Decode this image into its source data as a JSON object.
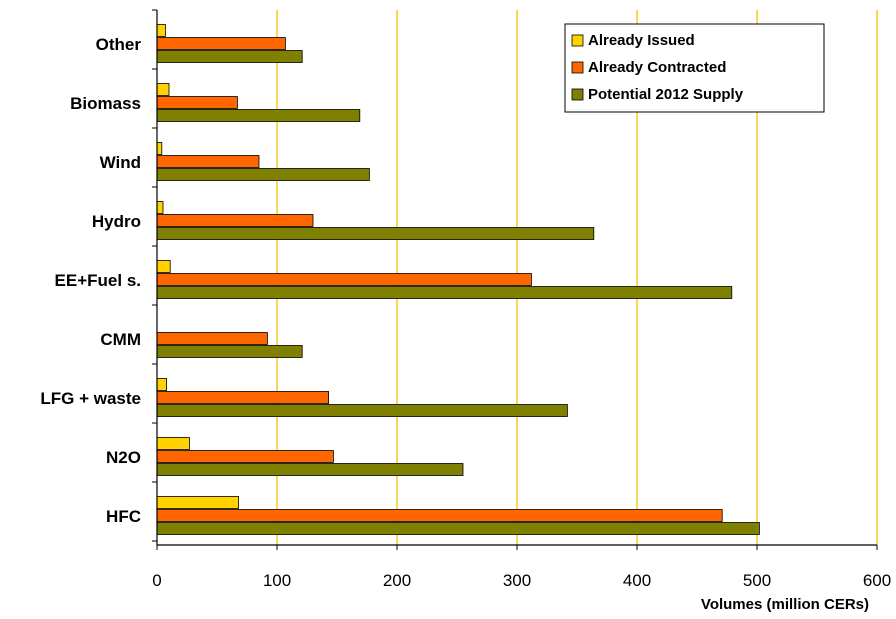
{
  "chart_data": {
    "type": "bar",
    "orientation": "horizontal",
    "categories": [
      "Other",
      "Biomass",
      "Wind",
      "Hydro",
      "EE+Fuel s.",
      "CMM",
      "LFG + waste",
      "N2O",
      "HFC"
    ],
    "series": [
      {
        "name": "Already Issued",
        "color": "#FFD200",
        "values": [
          7,
          10,
          4,
          5,
          11,
          0,
          8,
          27,
          68
        ]
      },
      {
        "name": "Already Contracted",
        "color": "#FF6600",
        "values": [
          107,
          67,
          85,
          130,
          312,
          92,
          143,
          147,
          471
        ]
      },
      {
        "name": "Potential 2012 Supply",
        "color": "#808000",
        "values": [
          121,
          169,
          177,
          364,
          479,
          121,
          342,
          255,
          502
        ]
      }
    ],
    "title": "",
    "xlabel": "Volumes (million CERs)",
    "ylabel": "",
    "xlim": [
      0,
      600
    ],
    "xticks": [
      0,
      100,
      200,
      300,
      400,
      500,
      600
    ],
    "xtick_labels": [
      "0",
      "100",
      "200",
      "300",
      "400",
      "500",
      "600"
    ],
    "grid": "vertical lines at each x tick",
    "grid_color": "#F5C400",
    "legend_position": "top-right"
  }
}
